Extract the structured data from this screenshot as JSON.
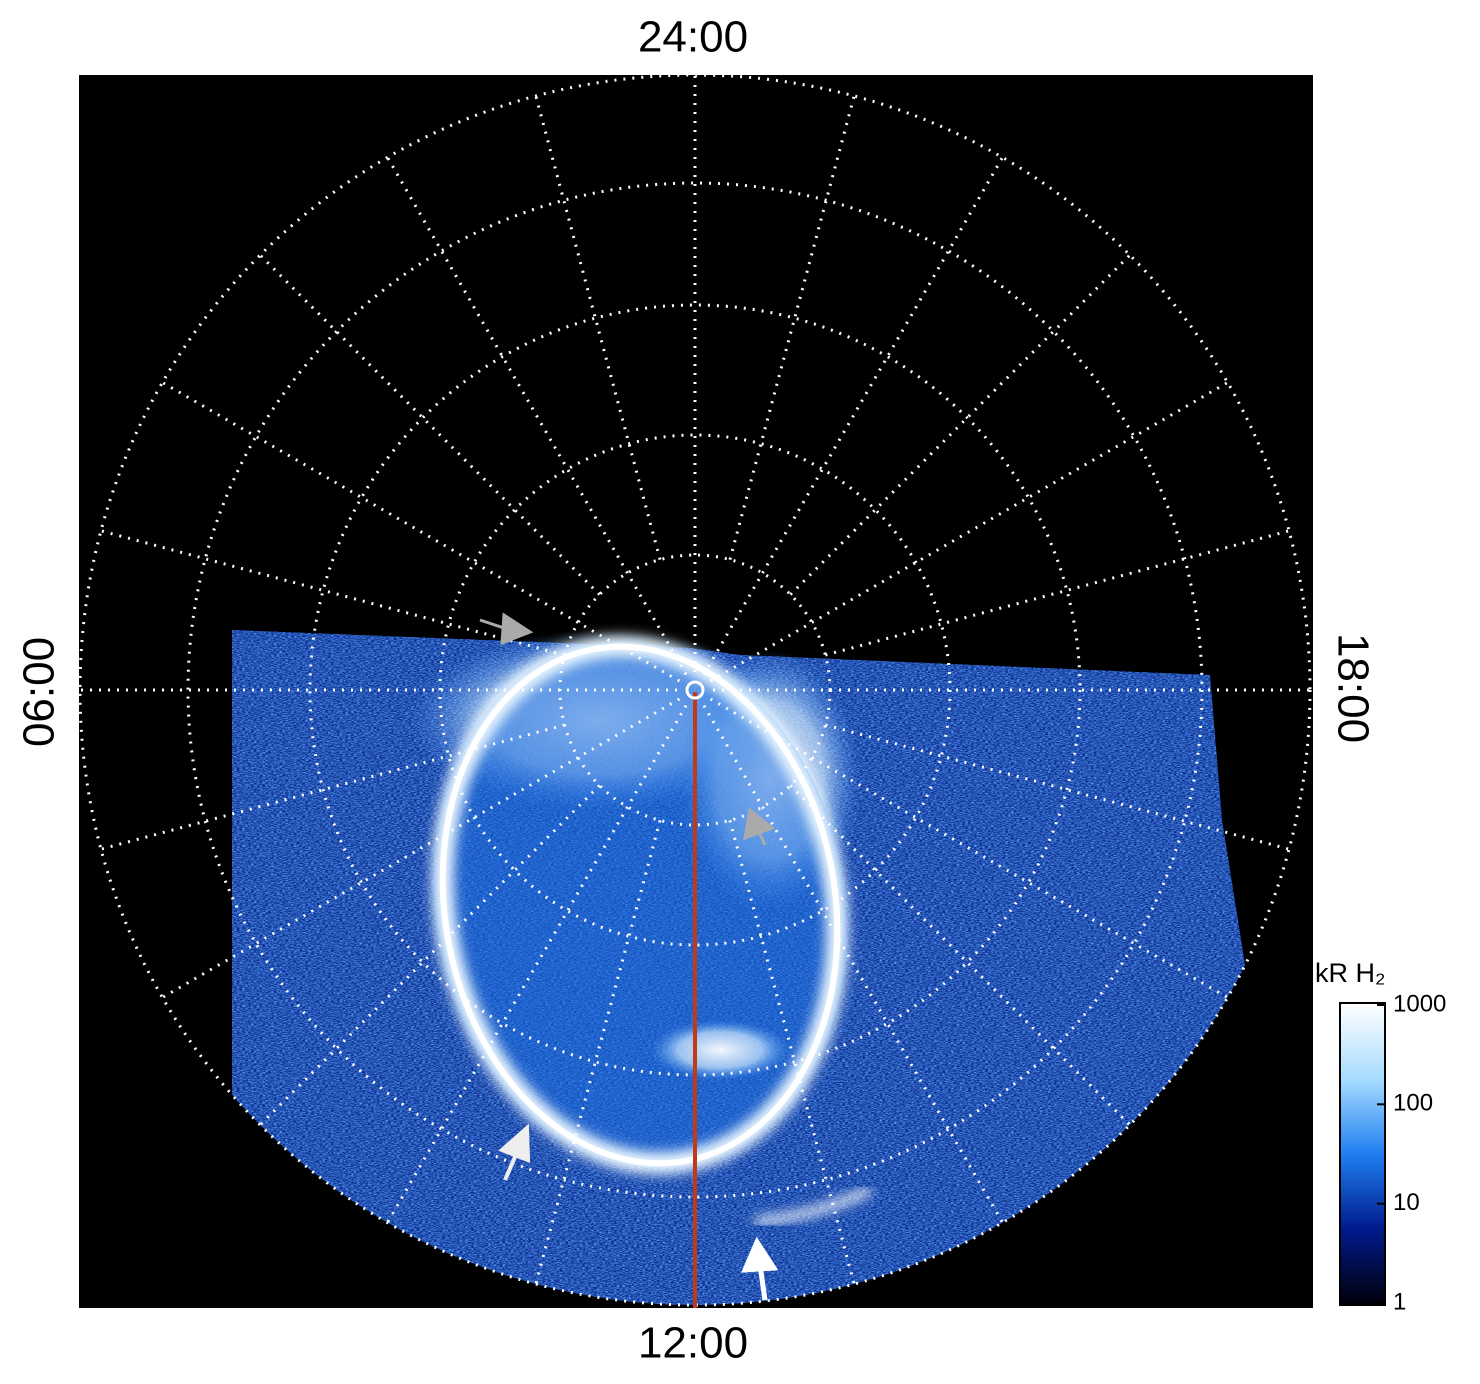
{
  "chart_data": {
    "type": "polar-image",
    "time_labels": {
      "top": "24:00",
      "left": "06:00",
      "right": "18:00",
      "bottom": "12:00"
    },
    "colorbar": {
      "label": "kR H₂",
      "log": true,
      "lim": [
        1,
        1000
      ],
      "ticks": [
        1,
        10,
        100,
        1000
      ],
      "colors": [
        "#000008",
        "#001a8c",
        "#1f7ff0",
        "#a8dcff",
        "#ffffff"
      ]
    },
    "meridian_line_color": "#c0391b"
  }
}
